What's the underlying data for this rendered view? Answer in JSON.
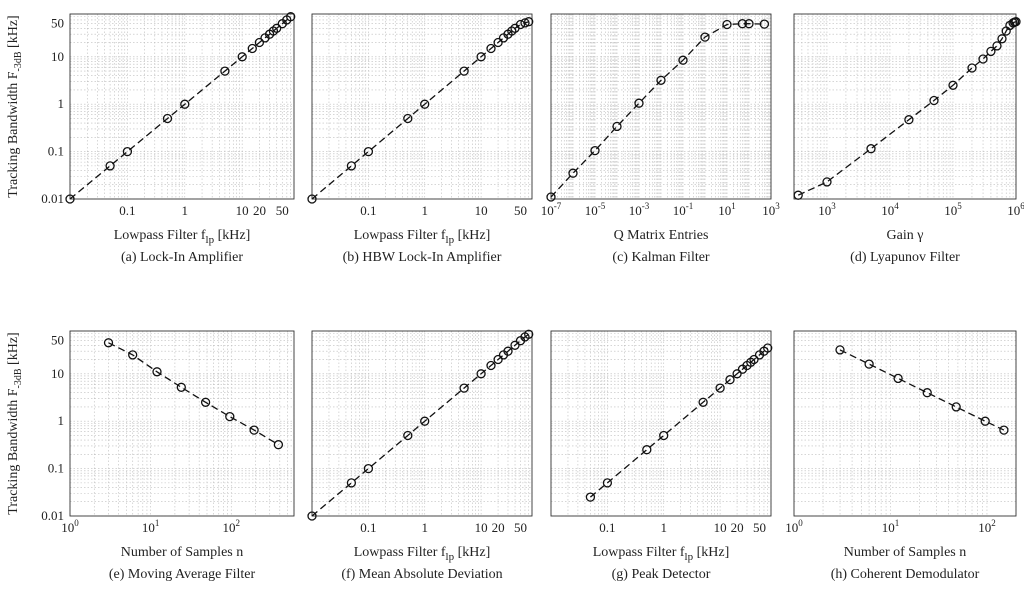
{
  "figure": {
    "ylabel": "Tracking Bandwidth F",
    "ylabel_sub": "-3dB",
    "ylabel_unit": " [kHz]"
  },
  "chart_data": [
    {
      "type": "line",
      "xscale": "log",
      "yscale": "log",
      "xlim": [
        0.01,
        80
      ],
      "ylim": [
        0.01,
        80
      ],
      "xticks": [
        {
          "v": 0.1,
          "label": "0.1"
        },
        {
          "v": 1,
          "label": "1"
        },
        {
          "v": 10,
          "label": "10"
        },
        {
          "v": 20,
          "label": "20"
        },
        {
          "v": 50,
          "label": "50"
        }
      ],
      "yticks": [
        {
          "v": 0.01,
          "label": "0.01"
        },
        {
          "v": 0.1,
          "label": "0.1"
        },
        {
          "v": 1,
          "label": "1"
        },
        {
          "v": 10,
          "label": "10"
        },
        {
          "v": 50,
          "label": "50"
        }
      ],
      "xlabel": "Lowpass Filter f",
      "xlabel_sub": "lp",
      "xlabel_unit": " [kHz]",
      "caption": "(a) Lock-In Amplifier",
      "points": [
        [
          0.01,
          0.01
        ],
        [
          0.05,
          0.05
        ],
        [
          0.1,
          0.1
        ],
        [
          0.5,
          0.5
        ],
        [
          1,
          1
        ],
        [
          5,
          5
        ],
        [
          10,
          10
        ],
        [
          15,
          15
        ],
        [
          20,
          20
        ],
        [
          25,
          25
        ],
        [
          30,
          30
        ],
        [
          35,
          35
        ],
        [
          40,
          40
        ],
        [
          50,
          50
        ],
        [
          60,
          60
        ],
        [
          70,
          70
        ]
      ]
    },
    {
      "type": "line",
      "xscale": "log",
      "yscale": "log",
      "xlim": [
        0.01,
        80
      ],
      "ylim": [
        0.01,
        80
      ],
      "xticks": [
        {
          "v": 0.1,
          "label": "0.1"
        },
        {
          "v": 1,
          "label": "1"
        },
        {
          "v": 10,
          "label": "10"
        },
        {
          "v": 50,
          "label": "50"
        }
      ],
      "yticks": [
        {
          "v": 0.01,
          "label": "0.01"
        },
        {
          "v": 0.1,
          "label": "0.1"
        },
        {
          "v": 1,
          "label": "1"
        },
        {
          "v": 10,
          "label": "10"
        },
        {
          "v": 50,
          "label": "50"
        }
      ],
      "xlabel": "Lowpass Filter f",
      "xlabel_sub": "lp",
      "xlabel_unit": " [kHz]",
      "caption": "(b) HBW Lock-In Amplifier",
      "points": [
        [
          0.01,
          0.01
        ],
        [
          0.05,
          0.05
        ],
        [
          0.1,
          0.1
        ],
        [
          0.5,
          0.5
        ],
        [
          1,
          1
        ],
        [
          5,
          5
        ],
        [
          10,
          10
        ],
        [
          15,
          15
        ],
        [
          20,
          20
        ],
        [
          25,
          25
        ],
        [
          30,
          30
        ],
        [
          35,
          35
        ],
        [
          40,
          40
        ],
        [
          50,
          48
        ],
        [
          60,
          52
        ],
        [
          70,
          55
        ]
      ]
    },
    {
      "type": "line",
      "xscale": "log",
      "yscale": "log",
      "xlim": [
        1e-07,
        1000
      ],
      "ylim": [
        0.01,
        80
      ],
      "xticks": [
        {
          "v": 1e-07,
          "label": "10",
          "exp": "-7"
        },
        {
          "v": 1e-05,
          "label": "10",
          "exp": "-5"
        },
        {
          "v": 0.001,
          "label": "10",
          "exp": "-3"
        },
        {
          "v": 0.1,
          "label": "10",
          "exp": "-1"
        },
        {
          "v": 10,
          "label": "10",
          "exp": "1"
        },
        {
          "v": 1000,
          "label": "10",
          "exp": "3"
        }
      ],
      "yticks": [
        {
          "v": 0.01,
          "label": "0.01"
        },
        {
          "v": 0.1,
          "label": "0.1"
        },
        {
          "v": 1,
          "label": "1"
        },
        {
          "v": 10,
          "label": "10"
        },
        {
          "v": 50,
          "label": "50"
        }
      ],
      "xlabel": "Q Matrix Entries",
      "xlabel_sub": "",
      "xlabel_unit": "",
      "caption": "(c) Kalman Filter",
      "points": [
        [
          1e-07,
          0.011
        ],
        [
          1e-06,
          0.035
        ],
        [
          1e-05,
          0.105
        ],
        [
          0.0001,
          0.34
        ],
        [
          0.001,
          1.05
        ],
        [
          0.01,
          3.2
        ],
        [
          0.1,
          8.5
        ],
        [
          1,
          26
        ],
        [
          10,
          48
        ],
        [
          50,
          50
        ],
        [
          100,
          50
        ],
        [
          500,
          49
        ]
      ]
    },
    {
      "type": "line",
      "xscale": "log",
      "yscale": "log",
      "xlim": [
        300,
        1000000.0
      ],
      "ylim": [
        0.01,
        80
      ],
      "xticks": [
        {
          "v": 1000,
          "label": "10",
          "exp": "3"
        },
        {
          "v": 10000,
          "label": "10",
          "exp": "4"
        },
        {
          "v": 100000,
          "label": "10",
          "exp": "5"
        },
        {
          "v": 1000000,
          "label": "10",
          "exp": "6"
        }
      ],
      "yticks": [
        {
          "v": 0.01,
          "label": "0.01"
        },
        {
          "v": 0.1,
          "label": "0.1"
        },
        {
          "v": 1,
          "label": "1"
        },
        {
          "v": 10,
          "label": "10"
        },
        {
          "v": 50,
          "label": "50"
        }
      ],
      "xlabel": "Gain γ",
      "xlabel_sub": "",
      "xlabel_unit": "",
      "caption": "(d) Lyapunov Filter",
      "points": [
        [
          350,
          0.012
        ],
        [
          1000,
          0.023
        ],
        [
          5000,
          0.115
        ],
        [
          20000,
          0.47
        ],
        [
          50000,
          1.2
        ],
        [
          100000,
          2.5
        ],
        [
          200000,
          5.8
        ],
        [
          300000,
          9
        ],
        [
          400000,
          13
        ],
        [
          500000,
          17
        ],
        [
          600000,
          24
        ],
        [
          700000,
          35
        ],
        [
          800000,
          46
        ],
        [
          900000,
          52
        ],
        [
          950000,
          54
        ],
        [
          1000000,
          55
        ]
      ]
    },
    {
      "type": "line",
      "xscale": "log",
      "yscale": "log",
      "xlim": [
        1,
        600
      ],
      "ylim": [
        0.01,
        80
      ],
      "xticks": [
        {
          "v": 1,
          "label": "10",
          "exp": "0"
        },
        {
          "v": 10,
          "label": "10",
          "exp": "1"
        },
        {
          "v": 100,
          "label": "10",
          "exp": "2"
        }
      ],
      "yticks": [
        {
          "v": 0.01,
          "label": "0.01"
        },
        {
          "v": 0.1,
          "label": "0.1"
        },
        {
          "v": 1,
          "label": "1"
        },
        {
          "v": 10,
          "label": "10"
        },
        {
          "v": 50,
          "label": "50"
        }
      ],
      "xlabel": "Number of Samples n",
      "xlabel_sub": "",
      "xlabel_unit": "",
      "caption": "(e) Moving Average Filter",
      "points": [
        [
          3,
          45
        ],
        [
          6,
          25
        ],
        [
          12,
          11
        ],
        [
          24,
          5.2
        ],
        [
          48,
          2.5
        ],
        [
          96,
          1.25
        ],
        [
          192,
          0.65
        ],
        [
          384,
          0.32
        ]
      ]
    },
    {
      "type": "line",
      "xscale": "log",
      "yscale": "log",
      "xlim": [
        0.01,
        80
      ],
      "ylim": [
        0.01,
        80
      ],
      "xticks": [
        {
          "v": 0.1,
          "label": "0.1"
        },
        {
          "v": 1,
          "label": "1"
        },
        {
          "v": 10,
          "label": "10"
        },
        {
          "v": 20,
          "label": "20"
        },
        {
          "v": 50,
          "label": "50"
        }
      ],
      "yticks": [
        {
          "v": 0.01,
          "label": "0.01"
        },
        {
          "v": 0.1,
          "label": "0.1"
        },
        {
          "v": 1,
          "label": "1"
        },
        {
          "v": 10,
          "label": "10"
        },
        {
          "v": 50,
          "label": "50"
        }
      ],
      "xlabel": "Lowpass Filter f",
      "xlabel_sub": "lp",
      "xlabel_unit": " [kHz]",
      "caption": "(f) Mean Absolute Deviation",
      "points": [
        [
          0.01,
          0.01
        ],
        [
          0.05,
          0.05
        ],
        [
          0.1,
          0.1
        ],
        [
          0.5,
          0.5
        ],
        [
          1,
          1
        ],
        [
          5,
          5
        ],
        [
          10,
          10
        ],
        [
          15,
          15
        ],
        [
          20,
          20
        ],
        [
          25,
          25
        ],
        [
          30,
          30
        ],
        [
          40,
          40
        ],
        [
          50,
          50
        ],
        [
          60,
          60
        ],
        [
          70,
          68
        ]
      ]
    },
    {
      "type": "line",
      "xscale": "log",
      "yscale": "log",
      "xlim": [
        0.01,
        80
      ],
      "ylim": [
        0.01,
        80
      ],
      "xticks": [
        {
          "v": 0.1,
          "label": "0.1"
        },
        {
          "v": 1,
          "label": "1"
        },
        {
          "v": 10,
          "label": "10"
        },
        {
          "v": 20,
          "label": "20"
        },
        {
          "v": 50,
          "label": "50"
        }
      ],
      "yticks": [
        {
          "v": 0.01,
          "label": "0.01"
        },
        {
          "v": 0.1,
          "label": "0.1"
        },
        {
          "v": 1,
          "label": "1"
        },
        {
          "v": 10,
          "label": "10"
        },
        {
          "v": 50,
          "label": "50"
        }
      ],
      "xlabel": "Lowpass Filter f",
      "xlabel_sub": "lp",
      "xlabel_unit": " [kHz]",
      "caption": "(g) Peak Detector",
      "points": [
        [
          0.05,
          0.025
        ],
        [
          0.1,
          0.05
        ],
        [
          0.5,
          0.25
        ],
        [
          1,
          0.5
        ],
        [
          5,
          2.5
        ],
        [
          10,
          5
        ],
        [
          15,
          7.5
        ],
        [
          20,
          10
        ],
        [
          25,
          12.5
        ],
        [
          30,
          15
        ],
        [
          35,
          17.5
        ],
        [
          40,
          20
        ],
        [
          50,
          25
        ],
        [
          60,
          30
        ],
        [
          70,
          35
        ]
      ]
    },
    {
      "type": "line",
      "xscale": "log",
      "yscale": "log",
      "xlim": [
        1,
        200
      ],
      "ylim": [
        0.01,
        80
      ],
      "xticks": [
        {
          "v": 1,
          "label": "10",
          "exp": "0"
        },
        {
          "v": 10,
          "label": "10",
          "exp": "1"
        },
        {
          "v": 100,
          "label": "10",
          "exp": "2"
        }
      ],
      "yticks": [
        {
          "v": 0.01,
          "label": "0.01"
        },
        {
          "v": 0.1,
          "label": "0.1"
        },
        {
          "v": 1,
          "label": "1"
        },
        {
          "v": 10,
          "label": "10"
        },
        {
          "v": 50,
          "label": "50"
        }
      ],
      "xlabel": "Number of Samples n",
      "xlabel_sub": "",
      "xlabel_unit": "",
      "caption": "(h) Coherent Demodulator",
      "points": [
        [
          3,
          32
        ],
        [
          6,
          16
        ],
        [
          12,
          8
        ],
        [
          24,
          4
        ],
        [
          48,
          2
        ],
        [
          96,
          1
        ],
        [
          150,
          0.65
        ]
      ]
    }
  ]
}
